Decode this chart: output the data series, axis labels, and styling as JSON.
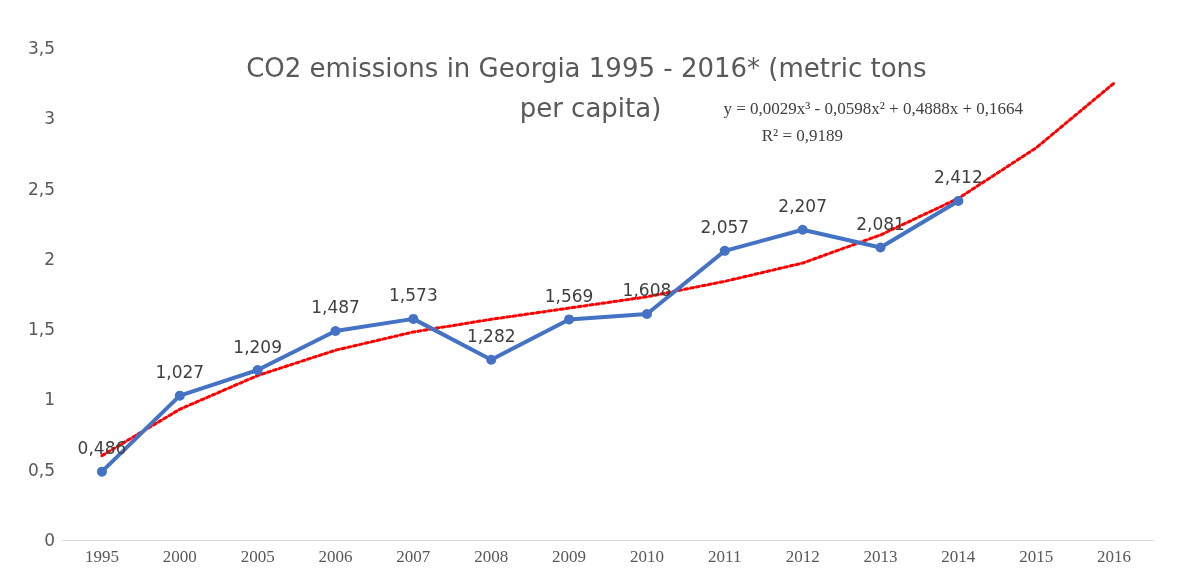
{
  "chart_data": {
    "type": "line",
    "title": "CO2 emissions in Georgia 1995 - 2016* (metric tons per capita)",
    "categories": [
      "1995",
      "2000",
      "2005",
      "2006",
      "2007",
      "2008",
      "2009",
      "2010",
      "2011",
      "2012",
      "2013",
      "2014",
      "2015",
      "2016"
    ],
    "series": [
      {
        "color": "#4472c4",
        "marker": "circle",
        "line_style": "solid",
        "values": [
          0.486,
          1.027,
          1.209,
          1.487,
          1.573,
          1.282,
          1.569,
          1.608,
          2.057,
          2.207,
          2.081,
          2.412,
          null,
          null
        ],
        "value_labels": [
          "0,486",
          "1,027",
          "1,209",
          "1,487",
          "1,573",
          "1,282",
          "1,569",
          "1,608",
          "2,057",
          "2,207",
          "2,081",
          "2,412",
          null,
          null
        ]
      },
      {
        "type": "line",
        "color": "#ff0000",
        "marker": "none",
        "line_style": "dotted",
        "values": [
          0.6,
          0.93,
          1.17,
          1.35,
          1.48,
          1.57,
          1.65,
          1.73,
          1.84,
          1.97,
          2.17,
          2.43,
          2.79,
          3.25
        ]
      }
    ],
    "ylim": [
      0,
      3.5
    ],
    "yticks": [
      0,
      {
        "value": 0.5,
        "label": "0,5"
      },
      1,
      {
        "value": 1.5,
        "label": "1,5"
      },
      2,
      {
        "value": 2.5,
        "label": "2,5"
      },
      3,
      {
        "value": 3.5,
        "label": "3,5"
      }
    ],
    "grid": false,
    "annotations": [
      "y = 0,0029x³ - 0,0598x² + 0,4888x + 0,1664",
      "R² = 0,9189"
    ]
  }
}
